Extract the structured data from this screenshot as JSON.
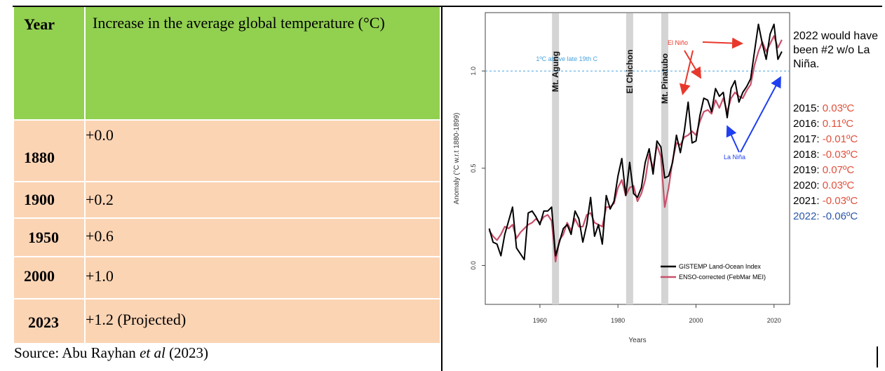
{
  "table": {
    "header": {
      "year": "Year",
      "value": "Increase in the average global temperature (°C)"
    },
    "rows": [
      {
        "year": "1880",
        "value": "+0.0"
      },
      {
        "year": "1900",
        "value": "+0.2"
      },
      {
        "year": "1950",
        "value": "+0.6"
      },
      {
        "year": "2000",
        "value": "+1.0"
      },
      {
        "year": "2023",
        "value": "+1.2 (Projected)"
      }
    ],
    "source_prefix": "Source: Abu Rayhan ",
    "source_italic": "et al",
    "source_suffix": " (2023)",
    "colors": {
      "header": "#92d050",
      "body": "#fbd4b4"
    }
  },
  "chart_data": {
    "type": "line",
    "xlabel": "Years",
    "ylabel": "Anomaly (°C w.r.t 1880-1899)",
    "xlim": [
      1946,
      2024
    ],
    "ylim": [
      -0.2,
      1.3
    ],
    "x_ticks": [
      "1960",
      "1980",
      "2000",
      "2020"
    ],
    "y_ticks": [
      "0.0",
      "0.5",
      "1.0"
    ],
    "reference_line": {
      "value": 1.0,
      "label": "1ºC above late 19th C"
    },
    "volcanoes": [
      {
        "name": "Mt. Agung",
        "year": 1964
      },
      {
        "name": "El Chichon",
        "year": 1983
      },
      {
        "name": "Mt. Pinatubo",
        "year": 1992
      }
    ],
    "annotations": {
      "el_nino": "El Niño",
      "la_nina": "La Niña"
    },
    "x": [
      1947,
      1948,
      1949,
      1950,
      1951,
      1952,
      1953,
      1954,
      1955,
      1956,
      1957,
      1958,
      1959,
      1960,
      1961,
      1962,
      1963,
      1964,
      1965,
      1966,
      1967,
      1968,
      1969,
      1970,
      1971,
      1972,
      1973,
      1974,
      1975,
      1976,
      1977,
      1978,
      1979,
      1980,
      1981,
      1982,
      1983,
      1984,
      1985,
      1986,
      1987,
      1988,
      1989,
      1990,
      1991,
      1992,
      1993,
      1994,
      1995,
      1996,
      1997,
      1998,
      1999,
      2000,
      2001,
      2002,
      2003,
      2004,
      2005,
      2006,
      2007,
      2008,
      2009,
      2010,
      2011,
      2012,
      2013,
      2014,
      2015,
      2016,
      2017,
      2018,
      2019,
      2020,
      2021,
      2022
    ],
    "series": [
      {
        "name": "GISTEMP Land-Ocean Index",
        "color": "#000000",
        "values": [
          0.19,
          0.12,
          0.11,
          0.05,
          0.16,
          0.23,
          0.3,
          0.09,
          0.06,
          0.03,
          0.27,
          0.28,
          0.25,
          0.21,
          0.28,
          0.28,
          0.3,
          0.05,
          0.12,
          0.19,
          0.21,
          0.16,
          0.28,
          0.24,
          0.12,
          0.21,
          0.35,
          0.15,
          0.21,
          0.11,
          0.36,
          0.29,
          0.33,
          0.46,
          0.55,
          0.36,
          0.53,
          0.37,
          0.35,
          0.4,
          0.53,
          0.6,
          0.47,
          0.64,
          0.61,
          0.45,
          0.46,
          0.53,
          0.67,
          0.58,
          0.69,
          0.84,
          0.63,
          0.64,
          0.77,
          0.86,
          0.85,
          0.79,
          0.91,
          0.87,
          0.89,
          0.76,
          0.91,
          0.95,
          0.84,
          0.89,
          0.92,
          0.96,
          1.1,
          1.24,
          1.14,
          1.06,
          1.19,
          1.24,
          1.06,
          1.1
        ]
      },
      {
        "name": "ENSO-corrected (FebMar MEI)",
        "color": "#c8506a",
        "values": [
          0.18,
          0.15,
          0.13,
          0.16,
          0.2,
          0.19,
          0.21,
          0.14,
          0.17,
          0.19,
          0.21,
          0.22,
          0.24,
          0.22,
          0.25,
          0.26,
          0.23,
          0.02,
          0.13,
          0.16,
          0.22,
          0.18,
          0.24,
          0.2,
          0.2,
          0.26,
          0.27,
          0.22,
          0.21,
          0.2,
          0.3,
          0.3,
          0.32,
          0.4,
          0.44,
          0.36,
          0.4,
          0.41,
          0.33,
          0.37,
          0.44,
          0.57,
          0.5,
          0.62,
          0.56,
          0.3,
          0.4,
          0.54,
          0.63,
          0.62,
          0.66,
          0.67,
          0.69,
          0.67,
          0.74,
          0.79,
          0.8,
          0.78,
          0.85,
          0.81,
          0.86,
          0.79,
          0.86,
          0.89,
          0.87,
          0.86,
          0.9,
          0.93,
          1.03,
          1.1,
          1.15,
          1.1,
          1.14,
          1.18,
          1.12,
          1.16
        ]
      }
    ],
    "side_note": "2022 would have been #2 w/o La Niña.",
    "side_values": [
      {
        "year": "2015:",
        "value": "0.03ºC",
        "color": "#e0503c"
      },
      {
        "year": "2016:",
        "value": "0.11ºC",
        "color": "#e0503c"
      },
      {
        "year": "2017:",
        "value": "-0.01ºC",
        "color": "#e0503c"
      },
      {
        "year": "2018:",
        "value": "-0.03ºC",
        "color": "#e0503c"
      },
      {
        "year": "2019:",
        "value": "0.07ºC",
        "color": "#e0503c"
      },
      {
        "year": "2020:",
        "value": "0.03ºC",
        "color": "#e0503c"
      },
      {
        "year": "2021:",
        "value": "-0.03ºC",
        "color": "#e0503c"
      },
      {
        "year": "2022:",
        "value": "-0.06ºC",
        "color": "#2b57a8",
        "year_color": "#2b57a8"
      }
    ]
  }
}
